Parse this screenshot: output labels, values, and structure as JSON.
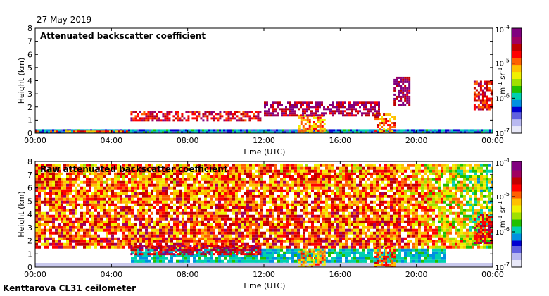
{
  "header": {
    "date": "27 May 2019"
  },
  "footer": {
    "site": "Kenttarova CL31 ceilometer"
  },
  "colors": {
    "colormap": [
      "#e8e8f8",
      "#b8b8f0",
      "#6060e0",
      "#0000d0",
      "#0090e0",
      "#00d0b0",
      "#20c000",
      "#a0e000",
      "#f0f000",
      "#ffc000",
      "#ff6000",
      "#ff0000",
      "#c00000",
      "#a00060",
      "#80007f"
    ],
    "lowest_level": "#c8c8ec"
  },
  "chart_data": [
    {
      "type": "heatmap",
      "title": "Attenuated backscatter coefficient",
      "xlabel": "Time (UTC)",
      "ylabel": "Height (km)",
      "x_ticks": [
        "00:00",
        "04:00",
        "08:00",
        "12:00",
        "16:00",
        "20:00",
        "00:00"
      ],
      "xlim_hours": [
        0,
        24
      ],
      "y_ticks": [
        "0",
        "1",
        "2",
        "3",
        "4",
        "5",
        "6",
        "7",
        "8"
      ],
      "ylim": [
        0,
        8
      ],
      "colorbar": {
        "scale": "log",
        "range": [
          1e-07,
          0.0001
        ],
        "ticks": [
          {
            "base": "10",
            "exp": "-4",
            "value": 0.0001
          },
          {
            "base": "10",
            "exp": "-5",
            "value": 1e-05
          },
          {
            "base": "10",
            "exp": "-6",
            "value": 1e-06
          },
          {
            "base": "10",
            "exp": "-7",
            "value": 1e-07
          }
        ],
        "unit_parts": [
          {
            "text": "m",
            "sup": false
          },
          {
            "text": "-1",
            "sup": true
          },
          {
            "text": " sr",
            "sup": false
          },
          {
            "text": "-1",
            "sup": true
          }
        ]
      },
      "layers": [
        {
          "hours": [
            0,
            24
          ],
          "height_km": [
            0,
            0.3
          ],
          "level": 0.3
        },
        {
          "hours": [
            0,
            4.8
          ],
          "height_km": [
            0.05,
            0.2
          ],
          "level": 0.72
        },
        {
          "hours": [
            13.8,
            15.2
          ],
          "height_km": [
            0,
            1.4
          ],
          "level": 0.65
        },
        {
          "hours": [
            17.8,
            18.8
          ],
          "height_km": [
            0,
            1.5
          ],
          "level": 0.7
        },
        {
          "hours": [
            5.0,
            11.8
          ],
          "height_km": [
            0.9,
            1.7
          ],
          "level": 0.82
        },
        {
          "hours": [
            12.0,
            18.0
          ],
          "height_km": [
            1.3,
            2.4
          ],
          "level": 0.9
        },
        {
          "hours": [
            18.8,
            19.6
          ],
          "height_km": [
            2.2,
            4.3
          ],
          "level": 0.92
        },
        {
          "hours": [
            23.0,
            24.0
          ],
          "height_km": [
            1.8,
            4.0
          ],
          "level": 0.8
        }
      ]
    },
    {
      "type": "heatmap",
      "title": "Raw attenuated backscatter coefficient",
      "xlabel": "Time (UTC)",
      "ylabel": "Height (km)",
      "x_ticks": [
        "00:00",
        "04:00",
        "08:00",
        "12:00",
        "16:00",
        "20:00",
        "00:00"
      ],
      "xlim_hours": [
        0,
        24
      ],
      "y_ticks": [
        "0",
        "1",
        "2",
        "3",
        "4",
        "5",
        "6",
        "7",
        "8"
      ],
      "ylim": [
        0,
        8
      ],
      "colorbar": {
        "scale": "log",
        "range": [
          1e-07,
          0.0001
        ],
        "ticks": [
          {
            "base": "10",
            "exp": "-4",
            "value": 0.0001
          },
          {
            "base": "10",
            "exp": "-5",
            "value": 1e-05
          },
          {
            "base": "10",
            "exp": "-6",
            "value": 1e-06
          },
          {
            "base": "10",
            "exp": "-7",
            "value": 1e-07
          }
        ],
        "unit_parts": [
          {
            "text": "m",
            "sup": false
          },
          {
            "text": "-1",
            "sup": true
          },
          {
            "text": " sr",
            "sup": false
          },
          {
            "text": "-1",
            "sup": true
          }
        ]
      },
      "noise_field": {
        "low_km": [
          0,
          1.5
        ],
        "high_km": [
          1.5,
          7.8
        ],
        "level_low": 0.3,
        "level_high": 0.75
      },
      "layers": [
        {
          "hours": [
            5.0,
            11.8
          ],
          "height_km": [
            0.9,
            1.7
          ],
          "level": 0.85
        },
        {
          "hours": [
            13.8,
            15.2
          ],
          "height_km": [
            0,
            1.4
          ],
          "level": 0.65
        },
        {
          "hours": [
            17.8,
            18.8
          ],
          "height_km": [
            0,
            1.5
          ],
          "level": 0.7
        },
        {
          "hours": [
            23.0,
            24.0
          ],
          "height_km": [
            1.8,
            4.0
          ],
          "level": 0.8
        }
      ]
    }
  ]
}
